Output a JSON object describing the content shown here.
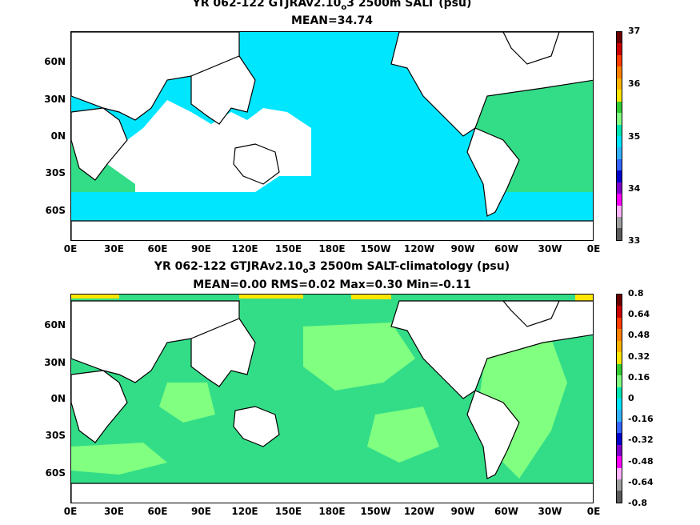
{
  "panel1": {
    "title_a": "YR 062-122 GTJRAv2.10",
    "title_sub": "o",
    "title_b": "3 2500m SALT (psu)",
    "subtitle": "MEAN=34.74",
    "colorbar_labels": [
      "37",
      "36",
      "35",
      "34",
      "33"
    ],
    "colors": [
      "#6b0000",
      "#cc0000",
      "#ff3d00",
      "#ff8000",
      "#ffb300",
      "#ffe600",
      "#33cc33",
      "#80ff80",
      "#00e6b3",
      "#00e6ff",
      "#33b3ff",
      "#3366ff",
      "#0000cc",
      "#8000cc",
      "#ff00ff",
      "#ffb3ff",
      "#9e9e9e",
      "#5a5a5a"
    ]
  },
  "panel2": {
    "title_a": "YR 062-122 GTJRAv2.10",
    "title_sub": "o",
    "title_b": "3 2500m SALT-climatology (psu)",
    "subtitle": "MEAN=0.00   RMS=0.02   Max=0.30   Min=-0.11",
    "colorbar_labels": [
      "0.8",
      "0.64",
      "0.48",
      "0.32",
      "0.16",
      "0",
      "-0.16",
      "-0.32",
      "-0.48",
      "-0.64",
      "-0.8"
    ],
    "colors": [
      "#6b0000",
      "#cc0000",
      "#ff3d00",
      "#ff8000",
      "#ffb300",
      "#ffe600",
      "#33cc33",
      "#80ff80",
      "#00e6b3",
      "#00e6ff",
      "#33b3ff",
      "#3366ff",
      "#0000cc",
      "#8000cc",
      "#ff00ff",
      "#ffb3ff",
      "#9e9e9e",
      "#5a5a5a"
    ]
  },
  "axes": {
    "lat_labels": [
      "60N",
      "30N",
      "0N",
      "30S",
      "60S"
    ],
    "lon_labels": [
      "0E",
      "30E",
      "60E",
      "90E",
      "120E",
      "150E",
      "180E",
      "150W",
      "120W",
      "90W",
      "60W",
      "30W",
      "0E"
    ]
  },
  "fields": {
    "panel1_ocean_color": "#00e6ff",
    "panel1_atlantic_color": "#33dd88",
    "panel2_ocean_color": "#33dd88",
    "panel2_positive_color": "#80ff80",
    "panel2_arctic_color": "#ffe600",
    "land_color": "#ffffff",
    "coast_color": "#000000"
  }
}
